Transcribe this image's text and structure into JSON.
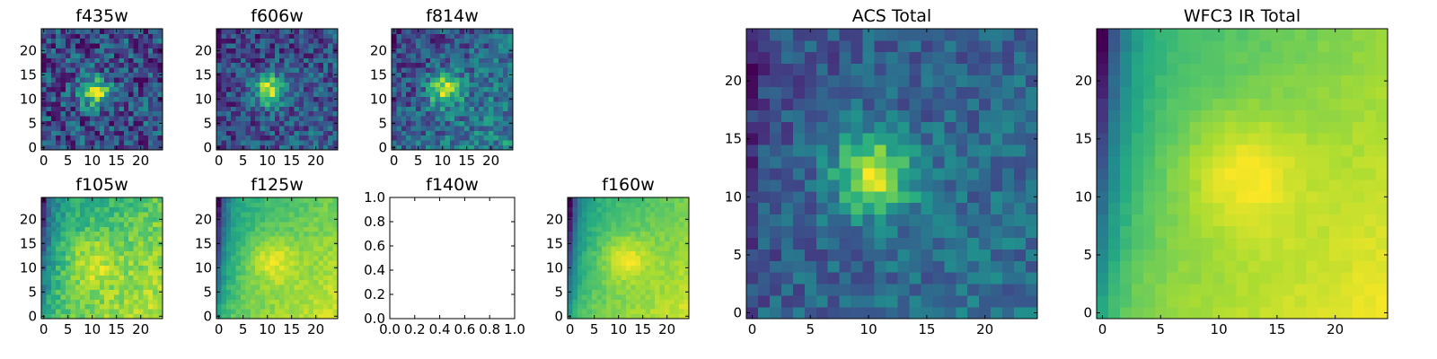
{
  "colormap": {
    "name": "viridis",
    "stops": [
      "#440154",
      "#472c7a",
      "#3b518b",
      "#2c718e",
      "#21908d",
      "#27ad81",
      "#5cc863",
      "#aadc32",
      "#fde725"
    ]
  },
  "chart_data": [
    {
      "id": "f435w",
      "type": "heatmap",
      "title": "f435w",
      "xlim": [
        -0.5,
        24.5
      ],
      "ylim": [
        -0.5,
        24.5
      ],
      "xticks": [
        0,
        5,
        10,
        15,
        20
      ],
      "yticks": [
        0,
        5,
        10,
        15,
        20
      ],
      "grid": false,
      "empty": false,
      "field": {
        "seed": 11,
        "noise": 0.42,
        "background": 0.35,
        "gradient": 0.0,
        "left_dark": 0.0,
        "blobs": [
          {
            "cx": 10.5,
            "cy": 11.5,
            "r": 2.2,
            "a": 0.55
          }
        ]
      }
    },
    {
      "id": "f606w",
      "type": "heatmap",
      "title": "f606w",
      "xlim": [
        -0.5,
        24.5
      ],
      "ylim": [
        -0.5,
        24.5
      ],
      "xticks": [
        0,
        5,
        10,
        15,
        20
      ],
      "yticks": [
        0,
        5,
        10,
        15,
        20
      ],
      "grid": false,
      "empty": false,
      "field": {
        "seed": 23,
        "noise": 0.34,
        "background": 0.42,
        "gradient": 0.1,
        "left_dark": 0.0,
        "blobs": [
          {
            "cx": 10.5,
            "cy": 12.0,
            "r": 2.3,
            "a": 0.55
          }
        ]
      }
    },
    {
      "id": "f814w",
      "type": "heatmap",
      "title": "f814w",
      "xlim": [
        -0.5,
        24.5
      ],
      "ylim": [
        -0.5,
        24.5
      ],
      "xticks": [
        0,
        5,
        10,
        15,
        20
      ],
      "yticks": [
        0,
        5,
        10,
        15,
        20
      ],
      "grid": false,
      "empty": false,
      "field": {
        "seed": 37,
        "noise": 0.32,
        "background": 0.42,
        "gradient": 0.22,
        "left_dark": 0.0,
        "blobs": [
          {
            "cx": 10.5,
            "cy": 12.0,
            "r": 2.4,
            "a": 0.45
          }
        ]
      }
    },
    {
      "id": "f105w",
      "type": "heatmap",
      "title": "f105w",
      "xlim": [
        -0.5,
        24.5
      ],
      "ylim": [
        -0.5,
        24.5
      ],
      "xticks": [
        0,
        5,
        10,
        15,
        20
      ],
      "yticks": [
        0,
        5,
        10,
        15,
        20
      ],
      "grid": false,
      "empty": false,
      "field": {
        "seed": 41,
        "noise": 0.2,
        "background": 0.48,
        "gradient": 0.38,
        "left_dark": 0.35,
        "blobs": [
          {
            "cx": 10.0,
            "cy": 11.0,
            "r": 4.0,
            "a": 0.2
          }
        ]
      }
    },
    {
      "id": "f125w",
      "type": "heatmap",
      "title": "f125w",
      "xlim": [
        -0.5,
        24.5
      ],
      "ylim": [
        -0.5,
        24.5
      ],
      "xticks": [
        0,
        5,
        10,
        15,
        20
      ],
      "yticks": [
        0,
        5,
        10,
        15,
        20
      ],
      "grid": false,
      "empty": false,
      "field": {
        "seed": 53,
        "noise": 0.12,
        "background": 0.45,
        "gradient": 0.4,
        "left_dark": 0.5,
        "blobs": [
          {
            "cx": 11.0,
            "cy": 11.5,
            "r": 3.5,
            "a": 0.22
          }
        ]
      }
    },
    {
      "id": "f140w",
      "type": "heatmap",
      "title": "f140w",
      "xlim": [
        0.0,
        1.0
      ],
      "ylim": [
        0.0,
        1.0
      ],
      "xticks": [
        0.0,
        0.2,
        0.4,
        0.6,
        0.8,
        1.0
      ],
      "yticks": [
        0.0,
        0.2,
        0.4,
        0.6,
        0.8,
        1.0
      ],
      "xtick_labels": [
        "0.0",
        "0.2",
        "0.4",
        "0.6",
        "0.8",
        "1.0"
      ],
      "ytick_labels": [
        "0.0",
        "0.2",
        "0.4",
        "0.6",
        "0.8",
        "1.0"
      ],
      "grid": false,
      "empty": true
    },
    {
      "id": "f160w",
      "type": "heatmap",
      "title": "f160w",
      "xlim": [
        -0.5,
        24.5
      ],
      "ylim": [
        -0.5,
        24.5
      ],
      "xticks": [
        0,
        5,
        10,
        15,
        20
      ],
      "yticks": [
        0,
        5,
        10,
        15,
        20
      ],
      "grid": false,
      "empty": false,
      "field": {
        "seed": 67,
        "noise": 0.1,
        "background": 0.46,
        "gradient": 0.4,
        "left_dark": 0.55,
        "blobs": [
          {
            "cx": 11.5,
            "cy": 12.0,
            "r": 3.2,
            "a": 0.25
          }
        ]
      }
    },
    {
      "id": "acs-total",
      "type": "heatmap",
      "title": "ACS Total",
      "xlim": [
        -0.5,
        24.5
      ],
      "ylim": [
        -0.5,
        24.5
      ],
      "xticks": [
        0,
        5,
        10,
        15,
        20
      ],
      "yticks": [
        0,
        5,
        10,
        15,
        20
      ],
      "grid": false,
      "empty": false,
      "field": {
        "seed": 79,
        "noise": 0.26,
        "background": 0.42,
        "gradient": 0.12,
        "left_dark": 0.1,
        "blobs": [
          {
            "cx": 10.5,
            "cy": 12.0,
            "r": 2.6,
            "a": 0.55
          }
        ]
      }
    },
    {
      "id": "wfc3-ir-total",
      "type": "heatmap",
      "title": "WFC3 IR Total",
      "xlim": [
        -0.5,
        24.5
      ],
      "ylim": [
        -0.5,
        24.5
      ],
      "xticks": [
        0,
        5,
        10,
        15,
        20
      ],
      "yticks": [
        0,
        5,
        10,
        15,
        20
      ],
      "grid": false,
      "empty": false,
      "field": {
        "seed": 97,
        "noise": 0.05,
        "background": 0.46,
        "gradient": 0.42,
        "left_dark": 0.6,
        "blobs": [
          {
            "cx": 12.0,
            "cy": 12.0,
            "r": 3.5,
            "a": 0.22
          }
        ]
      }
    }
  ]
}
